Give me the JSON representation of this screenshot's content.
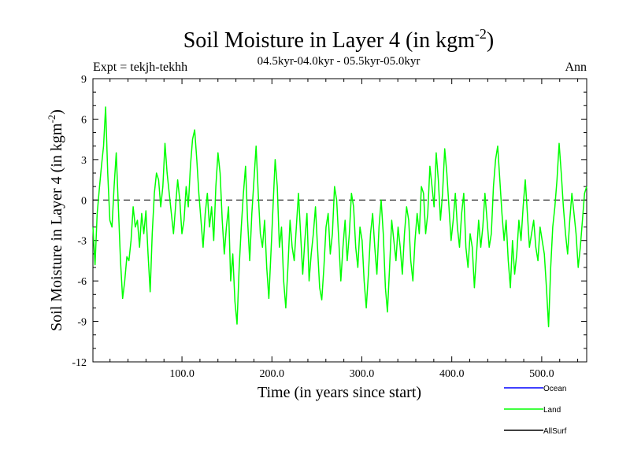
{
  "chart_data": {
    "type": "line",
    "title": "Soil Moisture in Layer 4 (in kgm",
    "title_sup": "-2",
    "title_close": ")",
    "subtitle": "04.5kyr-04.0kyr - 05.5kyr-05.0kyr",
    "expt_label": "Expt = tekjh-tekhh",
    "season_label": "Ann",
    "xlabel": "Time (in years since start)",
    "ylabel": "Soil Moisture in Layer 4 (in kgm",
    "ylabel_sup": "-2",
    "ylabel_close": ")",
    "xlim": [
      1,
      550
    ],
    "ylim": [
      -12,
      9
    ],
    "x_ticks": [
      {
        "value": 100,
        "label": "100.0"
      },
      {
        "value": 200,
        "label": "200.0"
      },
      {
        "value": 300,
        "label": "300.0"
      },
      {
        "value": 400,
        "label": "400.0"
      },
      {
        "value": 500,
        "label": "500.0"
      }
    ],
    "y_ticks": [
      {
        "value": 9,
        "label": "9"
      },
      {
        "value": 6,
        "label": "6"
      },
      {
        "value": 3,
        "label": "3"
      },
      {
        "value": 0,
        "label": "0"
      },
      {
        "value": -3,
        "label": "-3"
      },
      {
        "value": -6,
        "label": "-6"
      },
      {
        "value": -9,
        "label": "-9"
      },
      {
        "value": -12,
        "label": "-12"
      }
    ],
    "zero_line": 0,
    "legend": [
      {
        "name": "Ocean",
        "color": "#0000ff"
      },
      {
        "name": "Land",
        "color": "#00ff00"
      },
      {
        "name": "AllSurf",
        "color": "#000000"
      }
    ],
    "series": [
      {
        "name": "Land",
        "color": "#00ff00",
        "x_start": 1,
        "x_end": 550,
        "values": [
          -2.0,
          -4.8,
          -1.0,
          0.8,
          2.5,
          4.0,
          6.9,
          2.0,
          -1.5,
          -2.0,
          1.0,
          3.5,
          -0.5,
          -4.5,
          -7.3,
          -6.0,
          -4.2,
          -4.5,
          -3.0,
          -0.5,
          -2.0,
          -1.5,
          -3.5,
          -1.0,
          -2.5,
          -0.8,
          -4.0,
          -6.8,
          -2.5,
          0.5,
          2.0,
          1.5,
          -0.5,
          1.0,
          4.2,
          2.0,
          0.5,
          -1.0,
          -2.5,
          -0.5,
          1.5,
          0.0,
          -2.5,
          -1.5,
          1.0,
          -0.5,
          2.5,
          4.5,
          5.2,
          3.0,
          0.5,
          -1.5,
          -3.5,
          -1.0,
          0.5,
          -2.0,
          -0.5,
          -3.0,
          1.0,
          3.5,
          2.0,
          -1.5,
          -4.0,
          -2.0,
          -0.5,
          -6.0,
          -4.0,
          -7.5,
          -9.2,
          -5.0,
          -2.0,
          0.5,
          2.5,
          -1.5,
          -4.5,
          -1.0,
          1.5,
          4.0,
          0.5,
          -2.5,
          -3.5,
          -1.5,
          -5.0,
          -7.3,
          -4.0,
          -0.5,
          3.0,
          1.0,
          -3.5,
          -2.0,
          -6.0,
          -8.0,
          -5.0,
          -1.5,
          -3.5,
          -4.5,
          -2.0,
          0.5,
          -2.5,
          -5.5,
          -3.0,
          -1.0,
          -6.0,
          -4.0,
          -2.5,
          -0.5,
          -3.5,
          -6.5,
          -7.4,
          -5.0,
          -2.0,
          -1.0,
          -4.0,
          -2.5,
          1.0,
          0.0,
          -3.0,
          -6.0,
          -3.5,
          -1.5,
          -4.5,
          -2.5,
          0.5,
          -0.5,
          -3.5,
          -5.0,
          -2.0,
          -3.0,
          -6.0,
          -8.0,
          -5.5,
          -2.5,
          -1.0,
          -3.5,
          -5.5,
          -2.0,
          0.0,
          -2.5,
          -6.5,
          -8.3,
          -5.0,
          -1.5,
          -3.0,
          -4.5,
          -2.0,
          -3.5,
          -5.5,
          -2.5,
          -0.5,
          -1.5,
          -4.5,
          -6.0,
          -3.0,
          -1.0,
          -2.5,
          1.0,
          0.5,
          -2.5,
          -1.0,
          2.5,
          1.0,
          -0.5,
          3.5,
          1.5,
          -1.5,
          0.5,
          3.8,
          2.0,
          -0.5,
          -3.0,
          -1.5,
          0.5,
          -2.0,
          -3.5,
          -1.0,
          0.5,
          -3.5,
          -5.0,
          -2.5,
          -3.5,
          -6.5,
          -4.0,
          -1.5,
          -3.5,
          -2.0,
          0.5,
          -1.5,
          -3.5,
          -2.5,
          1.0,
          3.0,
          4.0,
          1.5,
          -1.0,
          -3.0,
          -1.5,
          -4.5,
          -6.5,
          -3.0,
          -5.5,
          -4.0,
          -1.5,
          -3.0,
          -0.5,
          1.5,
          -1.0,
          -3.5,
          -2.5,
          -1.5,
          -3.5,
          -4.5,
          -2.0,
          -3.0,
          -4.0,
          -6.5,
          -9.4,
          -5.0,
          -2.0,
          -0.5,
          1.5,
          4.2,
          2.0,
          -0.5,
          -2.5,
          -4.0,
          -1.5,
          0.5,
          -1.0,
          -2.5,
          -5.0,
          -3.5,
          -1.5,
          0.5,
          1.0
        ]
      }
    ]
  }
}
